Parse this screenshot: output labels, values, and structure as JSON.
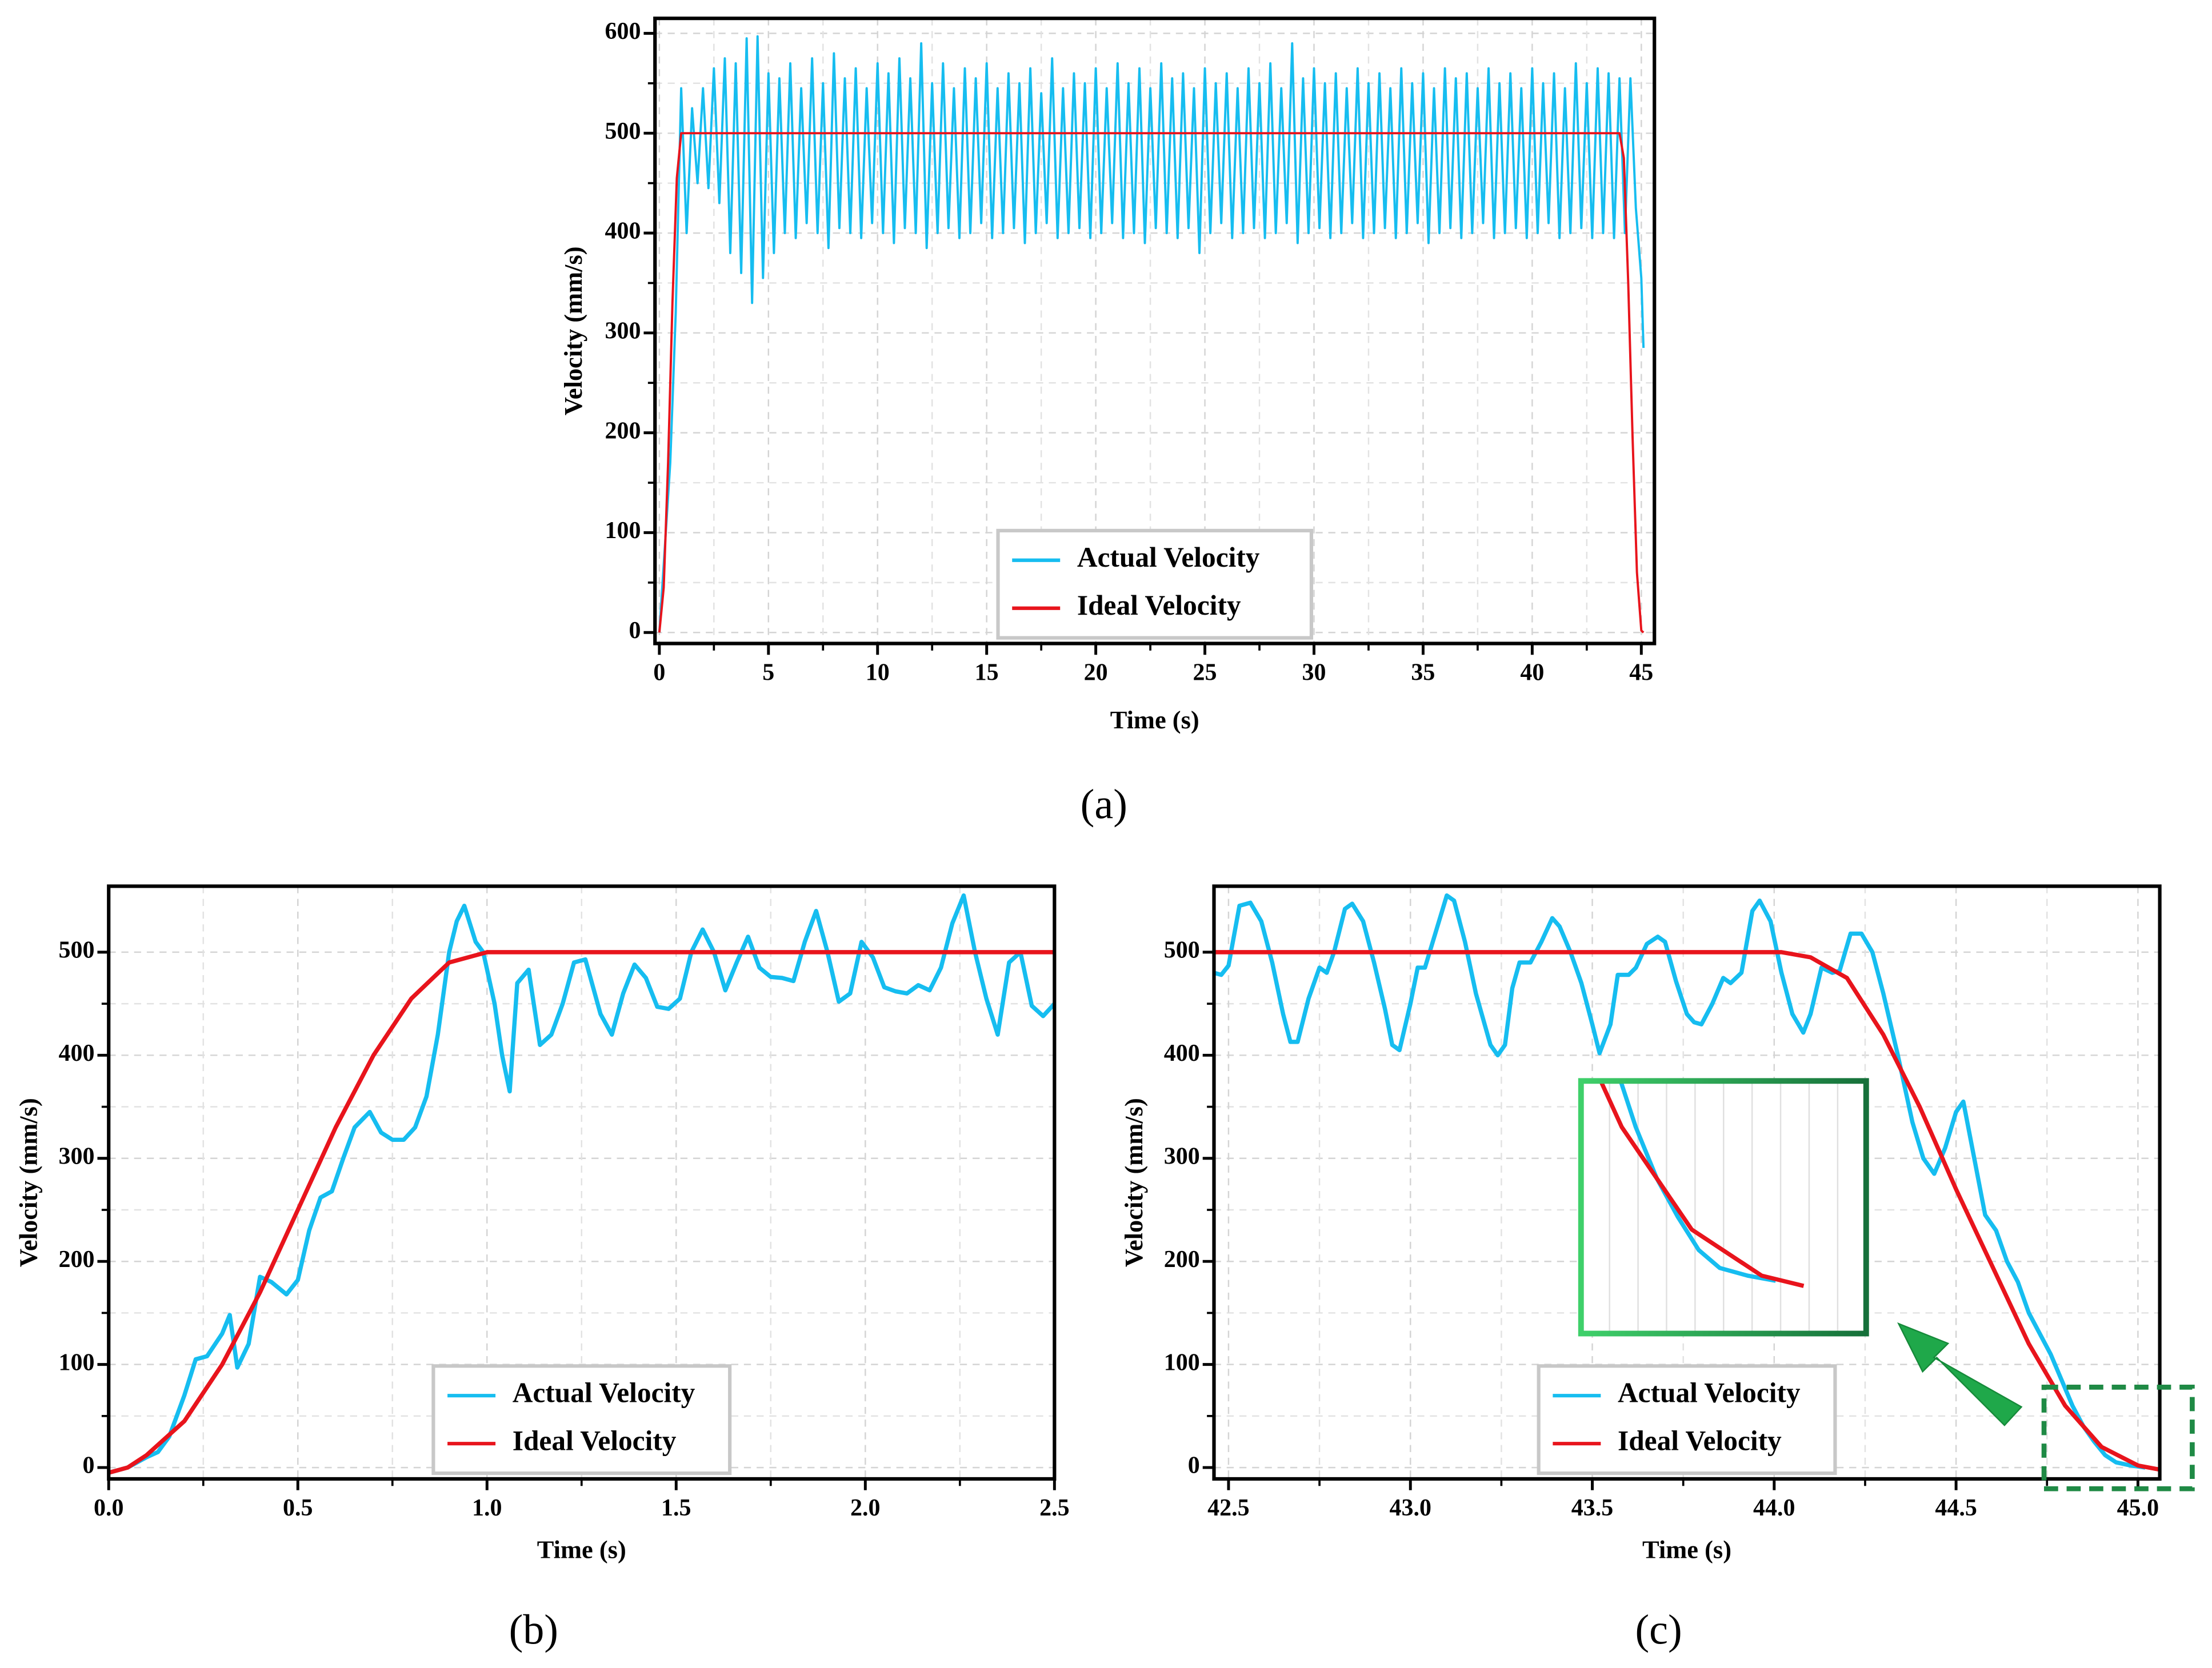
{
  "chart_data": [
    {
      "type": "line",
      "panel_label": "(a)",
      "xlabel": "Time (s)",
      "ylabel": "Velocity (mm/s)",
      "xlim": [
        -0.2,
        45.6
      ],
      "ylim": [
        -11,
        615
      ],
      "xticks": [
        0,
        5,
        10,
        15,
        20,
        25,
        30,
        35,
        40,
        45
      ],
      "yticks": [
        0,
        100,
        200,
        300,
        400,
        500,
        600
      ],
      "grid": true,
      "legend": "lower center",
      "series": [
        {
          "name": "Actual Velocity",
          "color": "#16bdf0",
          "x": [
            0,
            0.5,
            0.75,
            1,
            1.25,
            1.5,
            1.75,
            2,
            2.25,
            2.5,
            2.75,
            3,
            3.25,
            3.5,
            3.75,
            4,
            4.25,
            4.5,
            4.75,
            5,
            5.25,
            5.5,
            5.75,
            6,
            6.25,
            6.5,
            6.75,
            7,
            7.25,
            7.5,
            7.75,
            8,
            8.25,
            8.5,
            8.75,
            9,
            9.25,
            9.5,
            9.75,
            10,
            10.25,
            10.5,
            10.75,
            11,
            11.25,
            11.5,
            11.75,
            12,
            12.25,
            12.5,
            12.75,
            13,
            13.25,
            13.5,
            13.75,
            14,
            14.25,
            14.5,
            14.75,
            15,
            15.25,
            15.5,
            15.75,
            16,
            16.25,
            16.5,
            16.75,
            17,
            17.25,
            17.5,
            17.75,
            18,
            18.25,
            18.5,
            18.75,
            19,
            19.25,
            19.5,
            19.75,
            20,
            20.25,
            20.5,
            20.75,
            21,
            21.25,
            21.5,
            21.75,
            22,
            22.25,
            22.5,
            22.75,
            23,
            23.25,
            23.5,
            23.75,
            24,
            24.25,
            24.5,
            24.75,
            25,
            25.25,
            25.5,
            25.75,
            26,
            26.25,
            26.5,
            26.75,
            27,
            27.25,
            27.5,
            27.75,
            28,
            28.25,
            28.5,
            28.75,
            29,
            29.25,
            29.5,
            29.75,
            30,
            30.25,
            30.5,
            30.75,
            31,
            31.25,
            31.5,
            31.75,
            32,
            32.25,
            32.5,
            32.75,
            33,
            33.25,
            33.5,
            33.75,
            34,
            34.25,
            34.5,
            34.75,
            35,
            35.25,
            35.5,
            35.75,
            36,
            36.25,
            36.5,
            36.75,
            37,
            37.25,
            37.5,
            37.75,
            38,
            38.25,
            38.5,
            38.75,
            39,
            39.25,
            39.5,
            39.75,
            40,
            40.25,
            40.5,
            40.75,
            41,
            41.25,
            41.5,
            41.75,
            42,
            42.25,
            42.5,
            42.75,
            43,
            43.25,
            43.5,
            43.75,
            44,
            44.25,
            44.5,
            44.75,
            45,
            45.1
          ],
          "values": [
            0,
            170,
            320,
            545,
            400,
            525,
            450,
            545,
            445,
            565,
            430,
            575,
            380,
            570,
            360,
            595,
            330,
            597,
            355,
            560,
            380,
            555,
            400,
            570,
            395,
            545,
            410,
            575,
            400,
            550,
            385,
            580,
            405,
            555,
            400,
            565,
            395,
            545,
            410,
            570,
            400,
            560,
            390,
            575,
            405,
            555,
            400,
            590,
            385,
            550,
            400,
            570,
            405,
            545,
            395,
            565,
            400,
            555,
            410,
            570,
            395,
            545,
            400,
            560,
            405,
            550,
            390,
            565,
            400,
            540,
            410,
            575,
            395,
            545,
            400,
            560,
            405,
            550,
            395,
            565,
            400,
            545,
            410,
            570,
            395,
            550,
            400,
            565,
            390,
            545,
            405,
            570,
            400,
            555,
            395,
            560,
            405,
            545,
            380,
            565,
            400,
            550,
            410,
            560,
            395,
            545,
            400,
            565,
            405,
            550,
            395,
            570,
            400,
            545,
            410,
            590,
            390,
            555,
            400,
            565,
            405,
            550,
            395,
            560,
            400,
            545,
            410,
            565,
            395,
            550,
            400,
            560,
            405,
            545,
            395,
            565,
            400,
            550,
            410,
            560,
            390,
            545,
            400,
            565,
            405,
            555,
            395,
            560,
            400,
            545,
            410,
            565,
            395,
            550,
            400,
            560,
            405,
            545,
            395,
            565,
            400,
            550,
            410,
            560,
            395,
            545,
            400,
            570,
            405,
            550,
            395,
            565,
            400,
            560,
            395,
            555,
            400,
            555,
            425,
            355,
            285
          ]
        },
        {
          "name": "Ideal Velocity",
          "color": "#e8141c",
          "x": [
            0,
            0.2,
            0.4,
            0.6,
            0.8,
            1.0,
            44.0,
            44.2,
            44.4,
            44.6,
            44.8,
            45.0,
            45.1
          ],
          "values": [
            0,
            45,
            170,
            330,
            455,
            500,
            500,
            475,
            350,
            195,
            60,
            2,
            0
          ]
        }
      ]
    },
    {
      "type": "line",
      "panel_label": "(b)",
      "xlabel": "Time (s)",
      "ylabel": "Velocity (mm/s)",
      "xlim": [
        0,
        2.5
      ],
      "ylim": [
        -11,
        564
      ],
      "xticks": [
        {
          "value": 0,
          "label": "0.0"
        },
        0.5,
        {
          "value": 1,
          "label": "1.0"
        },
        1.5,
        {
          "value": 2,
          "label": "2.0"
        },
        2.5
      ],
      "yticks": [
        0,
        100,
        200,
        300,
        400,
        500
      ],
      "grid": true,
      "legend": "lower center",
      "series": [
        {
          "name": "Actual Velocity",
          "color": "#16bdf0",
          "x": [
            0,
            0.05,
            0.1,
            0.13,
            0.16,
            0.2,
            0.23,
            0.26,
            0.3,
            0.32,
            0.34,
            0.37,
            0.4,
            0.43,
            0.47,
            0.5,
            0.53,
            0.56,
            0.59,
            0.62,
            0.65,
            0.69,
            0.72,
            0.75,
            0.78,
            0.81,
            0.84,
            0.87,
            0.9,
            0.92,
            0.94,
            0.97,
            0.99,
            1.02,
            1.04,
            1.06,
            1.08,
            1.11,
            1.14,
            1.17,
            1.2,
            1.23,
            1.26,
            1.3,
            1.33,
            1.36,
            1.39,
            1.42,
            1.45,
            1.48,
            1.51,
            1.54,
            1.57,
            1.6,
            1.63,
            1.66,
            1.69,
            1.72,
            1.75,
            1.78,
            1.81,
            1.84,
            1.87,
            1.9,
            1.93,
            1.96,
            1.99,
            2.02,
            2.05,
            2.08,
            2.11,
            2.14,
            2.17,
            2.2,
            2.23,
            2.26,
            2.29,
            2.32,
            2.35,
            2.38,
            2.41,
            2.44,
            2.47,
            2.5
          ],
          "values": [
            -5,
            0,
            10,
            15,
            30,
            70,
            105,
            108,
            130,
            148,
            97,
            120,
            185,
            180,
            168,
            182,
            230,
            262,
            268,
            300,
            330,
            345,
            325,
            318,
            318,
            330,
            360,
            420,
            500,
            530,
            545,
            510,
            500,
            450,
            400,
            365,
            470,
            483,
            410,
            420,
            450,
            490,
            493,
            440,
            420,
            460,
            488,
            475,
            447,
            445,
            455,
            500,
            522,
            500,
            463,
            490,
            515,
            485,
            476,
            475,
            472,
            510,
            540,
            500,
            452,
            460,
            510,
            495,
            466,
            462,
            460,
            468,
            463,
            485,
            528,
            555,
            500,
            455,
            420,
            490,
            500,
            448,
            438,
            450
          ]
        },
        {
          "name": "Ideal Velocity",
          "color": "#e8141c",
          "x": [
            0,
            0.05,
            0.1,
            0.2,
            0.3,
            0.4,
            0.5,
            0.6,
            0.7,
            0.8,
            0.9,
            1.0,
            2.5
          ],
          "values": [
            -5,
            0,
            12,
            45,
            100,
            170,
            250,
            330,
            400,
            455,
            490,
            500,
            500
          ]
        }
      ]
    },
    {
      "type": "line",
      "panel_label": "(c)",
      "xlabel": "Time (s)",
      "ylabel": "Velocity (mm/s)",
      "xlim": [
        42.46,
        45.06
      ],
      "ylim": [
        -11,
        564
      ],
      "xticks": [
        42.5,
        {
          "value": 43,
          "label": "43.0"
        },
        43.5,
        {
          "value": 44,
          "label": "44.0"
        },
        44.5,
        {
          "value": 45,
          "label": "45.0"
        }
      ],
      "yticks": [
        0,
        100,
        200,
        300,
        400,
        500
      ],
      "grid": true,
      "legend": "lower center",
      "series": [
        {
          "name": "Actual Velocity",
          "color": "#16bdf0",
          "x": [
            42.46,
            42.48,
            42.5,
            42.53,
            42.56,
            42.59,
            42.62,
            42.65,
            42.67,
            42.69,
            42.72,
            42.75,
            42.77,
            42.79,
            42.82,
            42.84,
            42.87,
            42.9,
            42.93,
            42.95,
            42.97,
            43,
            43.02,
            43.04,
            43.07,
            43.1,
            43.12,
            43.15,
            43.18,
            43.22,
            43.24,
            43.26,
            43.28,
            43.3,
            43.33,
            43.36,
            43.39,
            43.41,
            43.44,
            43.47,
            43.5,
            43.52,
            43.55,
            43.57,
            43.6,
            43.62,
            43.65,
            43.68,
            43.7,
            43.73,
            43.76,
            43.78,
            43.8,
            43.83,
            43.86,
            43.88,
            43.91,
            43.94,
            43.96,
            43.99,
            44.02,
            44.05,
            44.08,
            44.1,
            44.13,
            44.16,
            44.18,
            44.21,
            44.24,
            44.27,
            44.3,
            44.34,
            44.38,
            44.41,
            44.44,
            44.47,
            44.5,
            44.52,
            44.55,
            44.58,
            44.61,
            44.64,
            44.67,
            44.7,
            44.73,
            44.76,
            44.79,
            44.82,
            44.85,
            44.88,
            44.91,
            44.94,
            44.98,
            45.02
          ],
          "values": [
            480,
            478,
            487,
            545,
            548,
            530,
            490,
            440,
            413,
            413,
            455,
            485,
            480,
            500,
            542,
            547,
            530,
            490,
            445,
            410,
            405,
            450,
            485,
            485,
            520,
            555,
            550,
            510,
            460,
            410,
            400,
            410,
            465,
            490,
            490,
            510,
            533,
            525,
            500,
            470,
            430,
            402,
            430,
            478,
            478,
            485,
            508,
            515,
            510,
            472,
            440,
            432,
            430,
            450,
            475,
            470,
            480,
            540,
            550,
            530,
            480,
            440,
            422,
            440,
            485,
            480,
            482,
            518,
            518,
            500,
            460,
            400,
            335,
            300,
            285,
            310,
            345,
            355,
            300,
            245,
            230,
            200,
            180,
            150,
            130,
            110,
            85,
            60,
            40,
            25,
            12,
            5,
            2,
            0
          ]
        },
        {
          "name": "Ideal Velocity",
          "color": "#e8141c",
          "x": [
            42.46,
            44.02,
            44.1,
            44.2,
            44.3,
            44.4,
            44.5,
            44.6,
            44.7,
            44.8,
            44.9,
            45.0,
            45.06
          ],
          "values": [
            500,
            500,
            495,
            475,
            420,
            350,
            270,
            195,
            120,
            60,
            20,
            2,
            -2
          ]
        }
      ]
    }
  ]
}
